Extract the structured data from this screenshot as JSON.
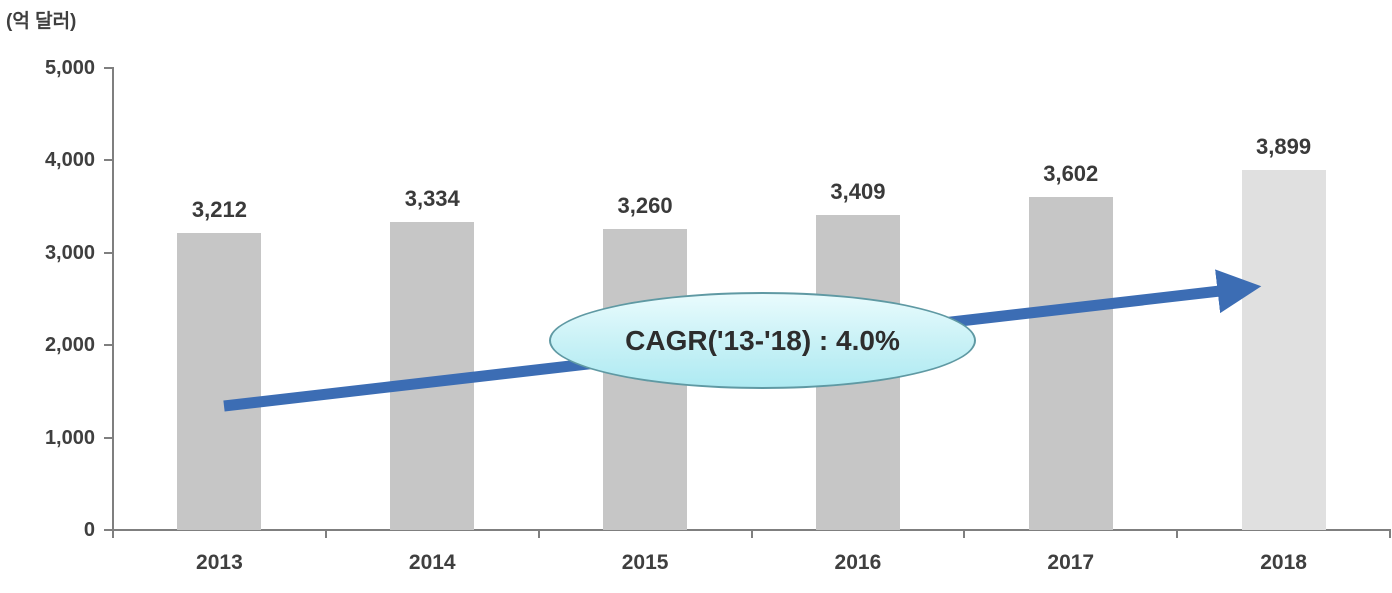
{
  "chart_data": {
    "type": "bar",
    "title": "",
    "unit_label": "(억 달러)",
    "categories": [
      "2013",
      "2014",
      "2015",
      "2016",
      "2017",
      "2018"
    ],
    "values": [
      3212,
      3334,
      3260,
      3409,
      3602,
      3899
    ],
    "value_labels": [
      "3,212",
      "3,334",
      "3,260",
      "3,409",
      "3,602",
      "3,899"
    ],
    "ylim": [
      0,
      5000
    ],
    "y_ticks": [
      0,
      1000,
      2000,
      3000,
      4000,
      5000
    ],
    "y_tick_labels": [
      "0",
      "1,000",
      "2,000",
      "3,000",
      "4,000",
      "5,000"
    ],
    "grid": false,
    "legend": "none",
    "annotation": {
      "text": "CAGR('13-'18) : 4.0%",
      "shape": "ellipse"
    },
    "trend_arrow": {
      "direction": "up-right",
      "from_category": "2013",
      "to_category": "2018"
    },
    "colors": {
      "bar": "#c6c6c6",
      "bar_last": "#e0e0e0",
      "axis": "#7f7f7f",
      "label": "#3f3f3f",
      "arrow": "#3c6db4",
      "ellipse_fill": "#c7f1f6",
      "ellipse_border": "#5f99a3"
    }
  }
}
